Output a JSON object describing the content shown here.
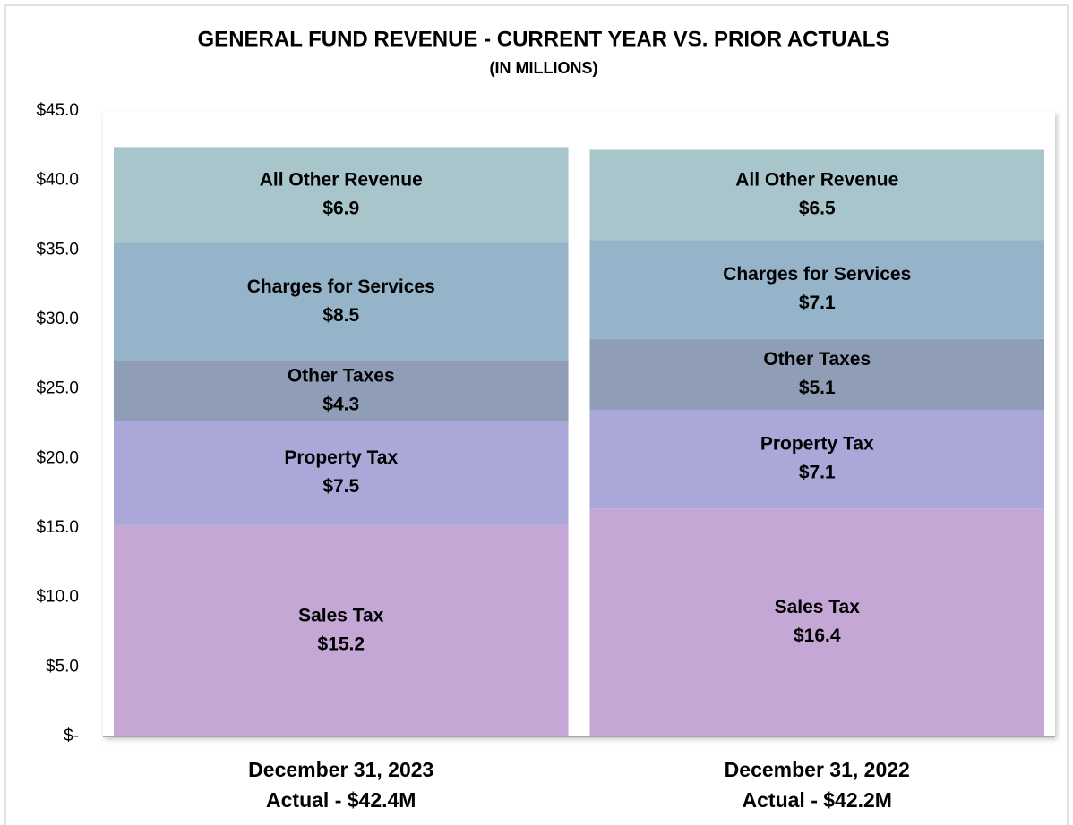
{
  "chart_data": {
    "type": "stacked_bar",
    "title": "GENERAL FUND REVENUE - CURRENT YEAR VS. PRIOR ACTUALS",
    "subtitle": "(IN MILLIONS)",
    "categories": [
      "December 31, 2023",
      "December 31, 2022"
    ],
    "category_sublabels": [
      "Actual - $42.4M",
      "Actual - $42.2M"
    ],
    "series": [
      {
        "name": "Sales Tax",
        "color": "#c5a7d6",
        "values": [
          15.2,
          16.4
        ],
        "value_labels": [
          "$15.2",
          "$16.4"
        ]
      },
      {
        "name": "Property Tax",
        "color": "#aba7d9",
        "values": [
          7.5,
          7.1
        ],
        "value_labels": [
          "$7.5",
          "$7.1"
        ]
      },
      {
        "name": "Other Taxes",
        "color": "#8f9db7",
        "values": [
          4.3,
          5.1
        ],
        "value_labels": [
          "$4.3",
          "$5.1"
        ]
      },
      {
        "name": "Charges for Services",
        "color": "#95b4c9",
        "values": [
          8.5,
          7.1
        ],
        "value_labels": [
          "$8.5",
          "$7.1"
        ]
      },
      {
        "name": "All Other Revenue",
        "color": "#a9c5cc",
        "values": [
          6.9,
          6.5
        ],
        "value_labels": [
          "$6.9",
          "$6.5"
        ]
      }
    ],
    "ylim": [
      0,
      45
    ],
    "yticks": [
      {
        "value": 0,
        "label": "$-"
      },
      {
        "value": 5,
        "label": "$5.0"
      },
      {
        "value": 10,
        "label": "$10.0"
      },
      {
        "value": 15,
        "label": "$15.0"
      },
      {
        "value": 20,
        "label": "$20.0"
      },
      {
        "value": 25,
        "label": "$25.0"
      },
      {
        "value": 30,
        "label": "$30.0"
      },
      {
        "value": 35,
        "label": "$35.0"
      },
      {
        "value": 40,
        "label": "$40.0"
      },
      {
        "value": 45,
        "label": "$45.0"
      }
    ],
    "grid": false
  }
}
